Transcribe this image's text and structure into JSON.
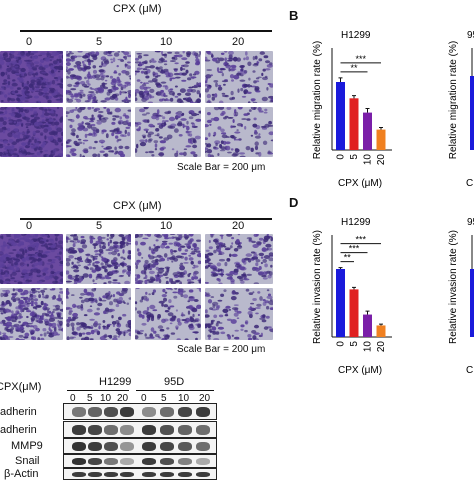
{
  "panelA": {
    "title": "CPX (μM)",
    "doses": [
      "0",
      "5",
      "10",
      "20"
    ],
    "scale_bar": "Scale Bar = 200 μm",
    "density": [
      [
        0.95,
        0.55,
        0.45,
        0.3
      ],
      [
        0.85,
        0.3,
        0.22,
        0.18
      ]
    ]
  },
  "panelB": {
    "letter": "B",
    "cell_line": "H1299",
    "cell_line_right": "95",
    "ylabel": "Relative migration rate (%)",
    "ylabel_right": "Relative migration rate (%)",
    "xlabel": "CPX (μM)",
    "xlabel_right": "C",
    "sig": [
      "**",
      "***"
    ]
  },
  "panelC": {
    "title": "CPX (μM)",
    "doses": [
      "0",
      "5",
      "10",
      "20"
    ],
    "scale_bar": "Scale Bar = 200 μm",
    "density": [
      [
        0.9,
        0.6,
        0.5,
        0.4
      ],
      [
        0.7,
        0.35,
        0.28,
        0.2
      ]
    ]
  },
  "panelD": {
    "letter": "D",
    "cell_line": "H1299",
    "cell_line_right": "95",
    "ylabel": "Relative invasion rate (%)",
    "ylabel_right": "Relative invasion rate (%)",
    "xlabel": "CPX (μM)",
    "xlabel_right": "C",
    "sig": [
      "**",
      "***",
      "***"
    ]
  },
  "chart_data": [
    {
      "type": "bar",
      "title": "H1299",
      "categories": [
        "0",
        "5",
        "10",
        "20"
      ],
      "values": [
        100,
        76,
        55,
        30
      ],
      "errors": [
        6,
        4,
        6,
        3
      ],
      "colors": [
        "#1a1adb",
        "#e02020",
        "#7a1fa8",
        "#f08020"
      ],
      "ylabel": "Relative migration rate (%)",
      "xlabel": "CPX (μM)",
      "ylim": [
        0,
        150
      ],
      "significance": [
        {
          "from": "0",
          "to": "10",
          "label": "**"
        },
        {
          "from": "0",
          "to": "20",
          "label": "***"
        }
      ]
    },
    {
      "type": "bar",
      "title": "H1299",
      "categories": [
        "0",
        "5",
        "10",
        "20"
      ],
      "values": [
        100,
        70,
        33,
        17
      ],
      "errors": [
        2,
        3,
        5,
        2
      ],
      "colors": [
        "#1a1adb",
        "#e02020",
        "#7a1fa8",
        "#f08020"
      ],
      "ylabel": "Relative invasion rate (%)",
      "xlabel": "CPX (μM)",
      "ylim": [
        0,
        150
      ],
      "significance": [
        {
          "from": "0",
          "to": "5",
          "label": "**"
        },
        {
          "from": "0",
          "to": "10",
          "label": "***"
        },
        {
          "from": "0",
          "to": "20",
          "label": "***"
        }
      ]
    }
  ],
  "western": {
    "dose_header": "CPX(μM)",
    "groups": [
      "H1299",
      "95D"
    ],
    "doses": [
      "0",
      "5",
      "10",
      "20",
      "0",
      "5",
      "10",
      "20"
    ],
    "rows": [
      {
        "label": "E-cadherin",
        "shown": "adherin",
        "intensity": [
          0.55,
          0.65,
          0.75,
          0.85,
          0.45,
          0.6,
          0.8,
          0.85
        ]
      },
      {
        "label": "N-cadherin",
        "shown": "adherin",
        "intensity": [
          0.85,
          0.8,
          0.6,
          0.45,
          0.85,
          0.75,
          0.65,
          0.6
        ]
      },
      {
        "label": "MMP9",
        "shown": "MMP9",
        "intensity": [
          0.9,
          0.85,
          0.75,
          0.4,
          0.85,
          0.8,
          0.7,
          0.6
        ]
      },
      {
        "label": "Snail",
        "shown": "Snail",
        "intensity": [
          0.9,
          0.8,
          0.55,
          0.3,
          0.85,
          0.75,
          0.5,
          0.3
        ]
      },
      {
        "label": "β-Actin",
        "shown": "β-Actin",
        "intensity": [
          0.85,
          0.85,
          0.85,
          0.85,
          0.85,
          0.85,
          0.85,
          0.85
        ]
      }
    ]
  }
}
